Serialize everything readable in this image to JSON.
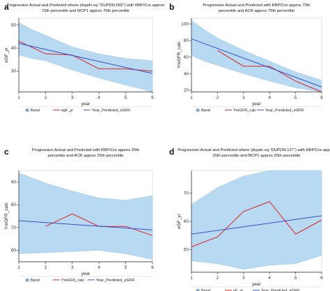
{
  "colors": {
    "band": "#b7d9f2",
    "band_stroke": "#9cc8ea",
    "actual": "#dd2020",
    "predicted": "#3a4fc6",
    "axis": "#222222",
    "frame": "#cfcfcf"
  },
  "legend_symbols": {
    "band": "▣"
  },
  "chart_data": [
    {
      "panel_letter": "a",
      "type": "line",
      "title_lines": [
        "Progression Actual and Predicted where (dupdn eq \"DUPDN-092\") with RBP/Cre approx",
        "75th percentile and MCP1 approx 75th percentile"
      ],
      "xlabel": "year",
      "ylabel": "eGF_yr",
      "xlim": [
        1,
        6
      ],
      "ylim": [
        21,
        53
      ],
      "xticks": [
        "1",
        "2",
        "3",
        "4",
        "5",
        "6"
      ],
      "yticks": [
        30,
        40,
        50
      ],
      "band": {
        "name": "Band",
        "x": [
          1,
          1.5,
          2,
          3,
          4,
          5,
          6
        ],
        "lower": [
          37,
          35.5,
          34.5,
          30.5,
          27,
          24,
          21
        ],
        "upper": [
          51,
          48,
          45.5,
          40.5,
          37.5,
          35.5,
          34.5
        ]
      },
      "series": [
        {
          "name": "egF_yr",
          "role": "actual",
          "x": [
            1,
            2,
            3,
            4,
            5,
            6
          ],
          "y": [
            43,
            37.5,
            37,
            31,
            31,
            30
          ]
        },
        {
          "name": "Year_Predicted_eGFR",
          "role": "predicted",
          "x": [
            1,
            6
          ],
          "y": [
            42,
            29
          ]
        }
      ]
    },
    {
      "panel_letter": "b",
      "type": "line",
      "title_lines": [
        "Progression Actual and Predicted with RBP/Cre approx 75th",
        "percentile and ACR approx 75th percentile"
      ],
      "xlabel": "year",
      "ylabel": "YreGFR_calc",
      "xlim": [
        1,
        6
      ],
      "ylim": [
        18,
        107
      ],
      "xticks": [
        "1",
        "2",
        "3",
        "4",
        "5",
        "6"
      ],
      "yticks": [
        20,
        40,
        60,
        80,
        100
      ],
      "band": {
        "name": "Band",
        "x": [
          1,
          1.5,
          2,
          3,
          4,
          5,
          6
        ],
        "lower": [
          62,
          55,
          50,
          40,
          31,
          23,
          18
        ],
        "upper": [
          104,
          93,
          83,
          68,
          55,
          42,
          32
        ]
      },
      "series": [
        {
          "name": "YreGFR_calc",
          "role": "actual",
          "x": [
            2,
            3,
            4,
            5,
            6
          ],
          "y": [
            68,
            49,
            49,
            31,
            18
          ]
        },
        {
          "name": "Year_Predicted_eGFR",
          "role": "predicted",
          "x": [
            1,
            6
          ],
          "y": [
            82,
            24
          ]
        }
      ]
    },
    {
      "panel_letter": "c",
      "type": "line",
      "title_lines": [
        "Progression Actual and Predicted with RBP/Cre approx 25th",
        "percentile and ACR approx 25th percentile"
      ],
      "xlabel": "year",
      "ylabel": "YreGFR_calc",
      "xlim": [
        1,
        6
      ],
      "ylim": [
        55,
        95
      ],
      "xticks": [
        "1",
        "2",
        "3",
        "4",
        "5",
        "6"
      ],
      "yticks": [
        60,
        70,
        80,
        90
      ],
      "band": {
        "name": "Band",
        "x": [
          1,
          2,
          3,
          4,
          5,
          6
        ],
        "lower": [
          58.5,
          59,
          59.5,
          60,
          58.5,
          56
        ],
        "upper": [
          94,
          89.5,
          86,
          83,
          82,
          84
        ]
      },
      "series": [
        {
          "name": "YreGFR_calc",
          "role": "actual",
          "x": [
            2,
            3,
            4,
            5,
            6
          ],
          "y": [
            70.5,
            76,
            70.5,
            70.5,
            66.5
          ]
        },
        {
          "name": "Year_Predicted_eGFR",
          "role": "predicted",
          "x": [
            1,
            6
          ],
          "y": [
            73,
            69
          ]
        }
      ]
    },
    {
      "panel_letter": "d",
      "type": "line",
      "title_lines": [
        "Progression Actual and Predicted where (dupdn eq \"DUPDN-127\") with RBP/Cre approx",
        "25th percentile and MCP1 approx 25th percentile"
      ],
      "xlabel": "year",
      "ylabel": "eGF_yr",
      "xlim": [
        1,
        6
      ],
      "ylim": [
        42,
        78
      ],
      "xticks": [
        "1",
        "2",
        "3",
        "4",
        "5",
        "6"
      ],
      "yticks": [
        50,
        60,
        70
      ],
      "band": {
        "name": "Band",
        "x": [
          1,
          2,
          3,
          4,
          5,
          6
        ],
        "lower": [
          46,
          45,
          43,
          44.5,
          45,
          48
        ],
        "upper": [
          66,
          72,
          76,
          78,
          78,
          78
        ]
      },
      "series": [
        {
          "name": "eF_yr",
          "role": "actual",
          "x": [
            1,
            2,
            3,
            4,
            5,
            6
          ],
          "y": [
            51,
            54.5,
            63.5,
            67,
            55.5,
            60.5
          ]
        },
        {
          "name": "Year_Predicted_eGFR",
          "role": "predicted",
          "x": [
            1,
            6
          ],
          "y": [
            55.5,
            62
          ]
        }
      ]
    }
  ]
}
